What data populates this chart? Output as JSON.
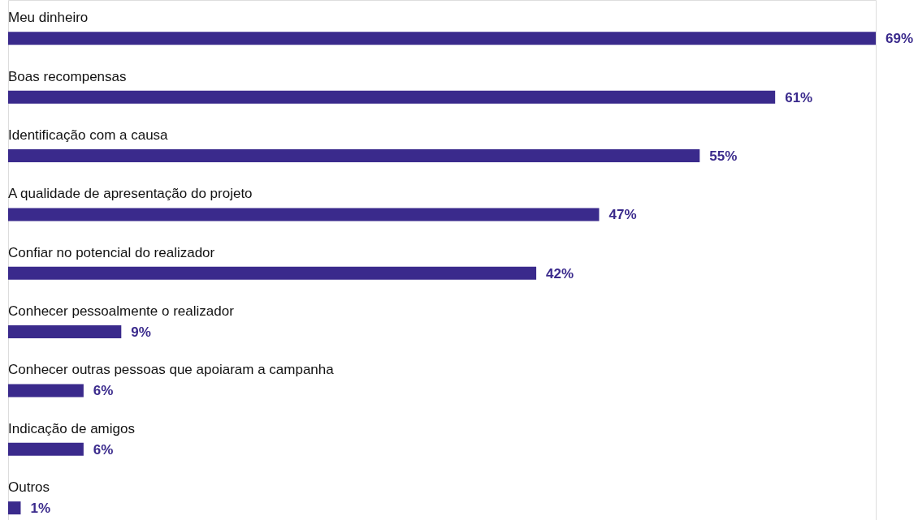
{
  "chart_data": {
    "type": "bar",
    "orientation": "horizontal",
    "categories": [
      "Meu dinheiro",
      "Boas recompensas",
      "Identificação com a causa",
      "A qualidade de apresentação do projeto",
      "Confiar no potencial do realizador",
      "Conhecer pessoalmente o realizador",
      "Conhecer outras pessoas que apoiaram a campanha",
      "Indicação de amigos",
      "Outros"
    ],
    "values": [
      69,
      61,
      55,
      47,
      42,
      9,
      6,
      6,
      1
    ],
    "value_labels": [
      "69%",
      "61%",
      "55%",
      "47%",
      "42%",
      "9%",
      "6%",
      "6%",
      "1%"
    ],
    "color": "#3a2a8c"
  }
}
